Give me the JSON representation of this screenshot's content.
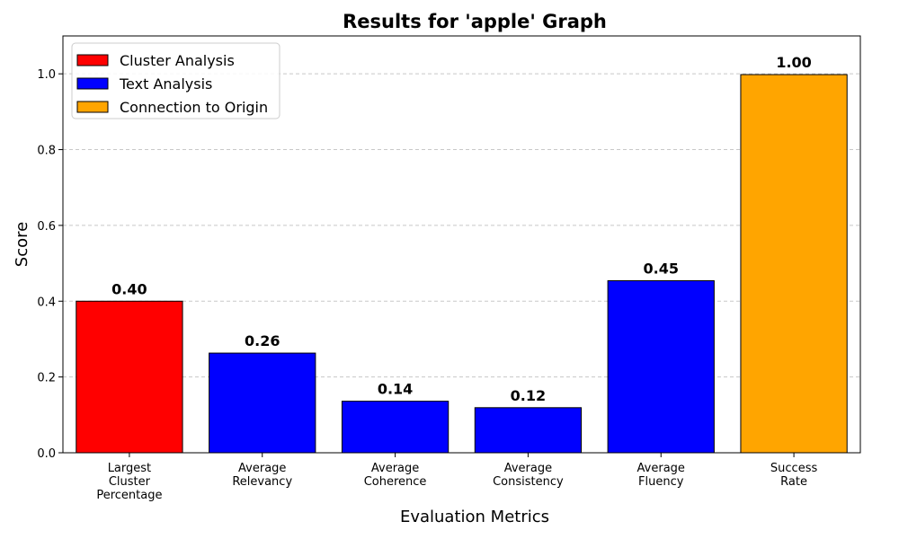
{
  "chart_data": {
    "type": "bar",
    "title": "Results for 'apple' Graph",
    "xlabel": "Evaluation Metrics",
    "ylabel": "Score",
    "ylim": [
      0,
      1.1
    ],
    "yticks": [
      "0.0",
      "0.2",
      "0.4",
      "0.6",
      "0.8",
      "1.0"
    ],
    "grid": "horizontal dashed",
    "legend_position": "top-left",
    "categories": [
      [
        "Largest",
        "Cluster",
        "Percentage"
      ],
      [
        "Average",
        "Relevancy"
      ],
      [
        "Average",
        "Coherence"
      ],
      [
        "Average",
        "Consistency"
      ],
      [
        "Average",
        "Fluency"
      ],
      [
        "Success",
        "Rate"
      ]
    ],
    "values": [
      0.4,
      0.263,
      0.136,
      0.119,
      0.454,
      0.998
    ],
    "value_labels": [
      "0.40",
      "0.26",
      "0.14",
      "0.12",
      "0.45",
      "1.00"
    ],
    "groups": [
      "Cluster Analysis",
      "Text Analysis",
      "Text Analysis",
      "Text Analysis",
      "Text Analysis",
      "Connection to Origin"
    ],
    "legend": [
      {
        "name": "Cluster Analysis",
        "color": "#ff0000"
      },
      {
        "name": "Text Analysis",
        "color": "#0000ff"
      },
      {
        "name": "Connection to Origin",
        "color": "#ffa500"
      }
    ]
  }
}
